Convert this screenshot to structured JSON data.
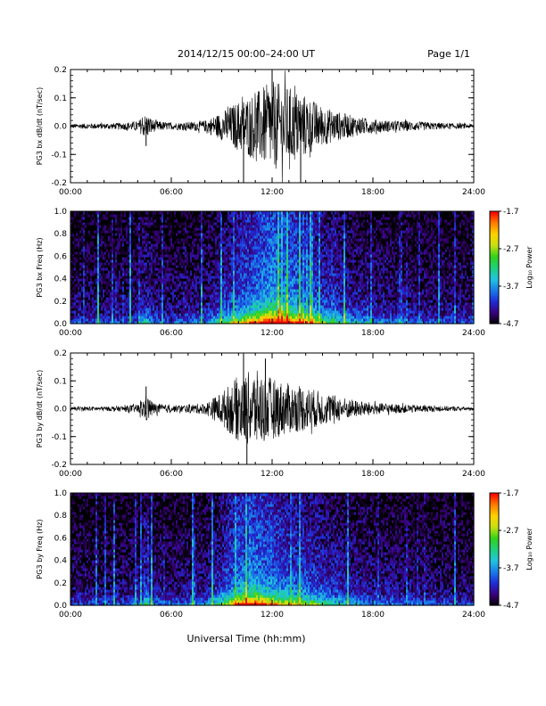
{
  "header": {
    "title": "2014/12/15  00:00–24:00 UT",
    "page": "Page 1/1"
  },
  "footer": {
    "xlabel": "Universal Time (hh:mm)"
  },
  "colorbar": {
    "label": "Log₁₀ Power",
    "ticks": [
      "-1.7",
      "-2.7",
      "-3.7",
      "-4.7"
    ],
    "range": [
      -4.7,
      -1.7
    ],
    "colors": [
      "#000000",
      "#3a007a",
      "#1f2bd6",
      "#1a7be8",
      "#22c4e0",
      "#1fd07a",
      "#34d01a",
      "#c8e010",
      "#ffd200",
      "#ff7a00",
      "#ff0000"
    ]
  },
  "chart_data": [
    {
      "type": "line",
      "name": "bx-waveform",
      "ylabel": "PG3 bx dB/dt (nT/sec)",
      "x_range_hours": [
        0,
        24
      ],
      "xticks": [
        "00:00",
        "06:00",
        "12:00",
        "18:00",
        "24:00"
      ],
      "ylim": [
        -0.2,
        0.2
      ],
      "yticks": [
        "-0.2",
        "-0.1",
        "0.0",
        "0.1",
        "0.2"
      ],
      "envelope": {
        "hours": [
          0,
          1,
          2,
          3,
          4,
          4.5,
          5,
          6,
          7,
          8,
          9,
          10,
          11,
          12,
          13,
          14,
          15,
          16,
          17,
          18,
          19,
          20,
          21,
          22,
          23,
          24
        ],
        "amplitude": [
          0.008,
          0.01,
          0.01,
          0.012,
          0.018,
          0.045,
          0.02,
          0.012,
          0.015,
          0.02,
          0.05,
          0.09,
          0.12,
          0.16,
          0.14,
          0.11,
          0.07,
          0.05,
          0.035,
          0.025,
          0.02,
          0.018,
          0.015,
          0.012,
          0.01,
          0.008
        ]
      },
      "peaks": [
        {
          "hour": 12.0,
          "value": 0.22
        },
        {
          "hour": 13.7,
          "value": -0.21
        },
        {
          "hour": 10.3,
          "value": -0.2
        },
        {
          "hour": 4.5,
          "value": -0.07
        }
      ]
    },
    {
      "type": "heatmap",
      "name": "bx-spectrogram",
      "ylabel": "PG3 bx Freq (Hz)",
      "x_range_hours": [
        0,
        24
      ],
      "xticks": [
        "00:00",
        "06:00",
        "12:00",
        "18:00",
        "24:00"
      ],
      "ylim": [
        0.0,
        1.0
      ],
      "yticks": [
        "0.0",
        "0.2",
        "0.4",
        "0.6",
        "0.8",
        "1.0"
      ],
      "zlabel": "Log₁₀ Power",
      "zrange": [
        -4.7,
        -1.7
      ]
    },
    {
      "type": "line",
      "name": "by-waveform",
      "ylabel": "PG3 by dB/dt (nT/sec)",
      "x_range_hours": [
        0,
        24
      ],
      "xticks": [
        "00:00",
        "06:00",
        "12:00",
        "18:00",
        "24:00"
      ],
      "ylim": [
        -0.2,
        0.2
      ],
      "yticks": [
        "-0.2",
        "-0.1",
        "0.0",
        "0.1",
        "0.2"
      ],
      "envelope": {
        "hours": [
          0,
          1,
          2,
          3,
          4,
          4.5,
          5,
          6,
          7,
          8,
          9,
          10,
          11,
          12,
          13,
          14,
          15,
          16,
          17,
          18,
          19,
          20,
          21,
          22,
          23,
          24
        ],
        "amplitude": [
          0.006,
          0.008,
          0.008,
          0.01,
          0.015,
          0.05,
          0.02,
          0.012,
          0.015,
          0.02,
          0.06,
          0.12,
          0.14,
          0.11,
          0.09,
          0.08,
          0.06,
          0.045,
          0.03,
          0.022,
          0.018,
          0.015,
          0.013,
          0.01,
          0.008,
          0.006
        ]
      },
      "peaks": [
        {
          "hour": 10.3,
          "value": 0.2
        },
        {
          "hour": 10.5,
          "value": -0.2
        },
        {
          "hour": 11.6,
          "value": 0.18
        },
        {
          "hour": 4.5,
          "value": 0.08
        }
      ]
    },
    {
      "type": "heatmap",
      "name": "by-spectrogram",
      "ylabel": "PG3 by Freq (Hz)",
      "x_range_hours": [
        0,
        24
      ],
      "xticks": [
        "00:00",
        "06:00",
        "12:00",
        "18:00",
        "24:00"
      ],
      "ylim": [
        0.0,
        1.0
      ],
      "yticks": [
        "0.0",
        "0.2",
        "0.4",
        "0.6",
        "0.8",
        "1.0"
      ],
      "zlabel": "Log₁₀ Power",
      "zrange": [
        -4.7,
        -1.7
      ]
    }
  ]
}
